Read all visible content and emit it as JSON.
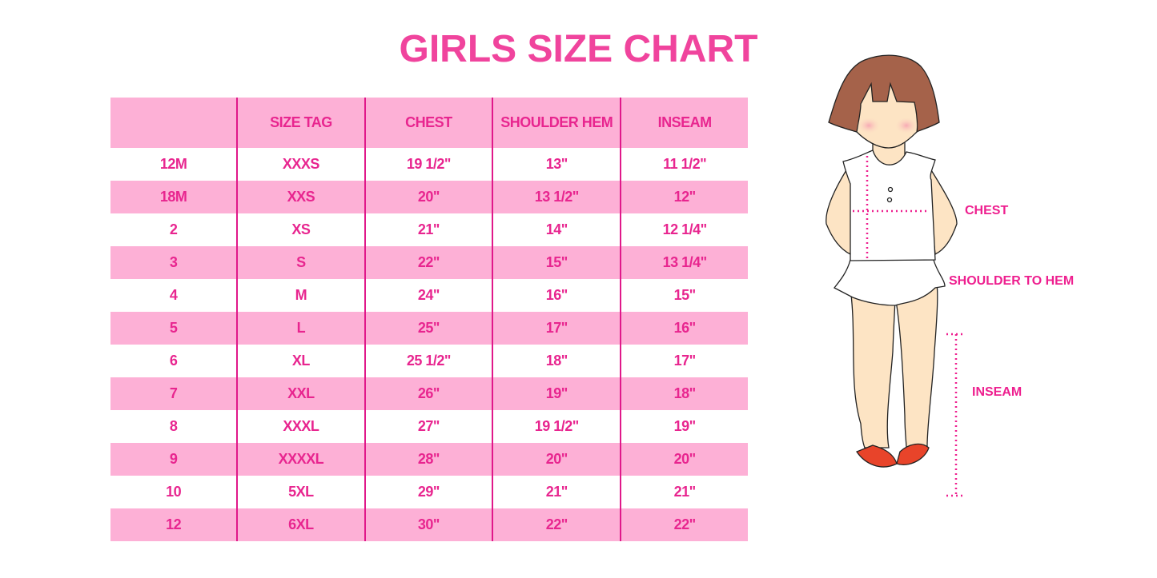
{
  "title": "GIRLS SIZE CHART",
  "table": {
    "headers": [
      "",
      "SIZE TAG",
      "CHEST",
      "SHOULDER HEM",
      "INSEAM"
    ],
    "rows": [
      [
        "12M",
        "XXXS",
        "19 1/2\"",
        "13\"",
        "11 1/2\""
      ],
      [
        "18M",
        "XXS",
        "20\"",
        "13 1/2\"",
        "12\""
      ],
      [
        "2",
        "XS",
        "21\"",
        "14\"",
        "12 1/4\""
      ],
      [
        "3",
        "S",
        "22\"",
        "15\"",
        "13 1/4\""
      ],
      [
        "4",
        "M",
        "24\"",
        "16\"",
        "15\""
      ],
      [
        "5",
        "L",
        "25\"",
        "17\"",
        "16\""
      ],
      [
        "6",
        "XL",
        "25 1/2\"",
        "18\"",
        "17\""
      ],
      [
        "7",
        "XXL",
        "26\"",
        "19\"",
        "18\""
      ],
      [
        "8",
        "XXXL",
        "27\"",
        "19 1/2\"",
        "19\""
      ],
      [
        "9",
        "XXXXL",
        "28\"",
        "20\"",
        "20\""
      ],
      [
        "10",
        "5XL",
        "29\"",
        "21\"",
        "21\""
      ],
      [
        "12",
        "6XL",
        "30\"",
        "22\"",
        "22\""
      ]
    ]
  },
  "figure": {
    "labels": {
      "chest": "CHEST",
      "shoulder_to_hem": "SHOULDER TO HEM",
      "inseam": "INSEAM"
    }
  },
  "colors": {
    "accent": "#e8258f",
    "row_pink": "#fdb0d6",
    "title": "#f0449d"
  }
}
